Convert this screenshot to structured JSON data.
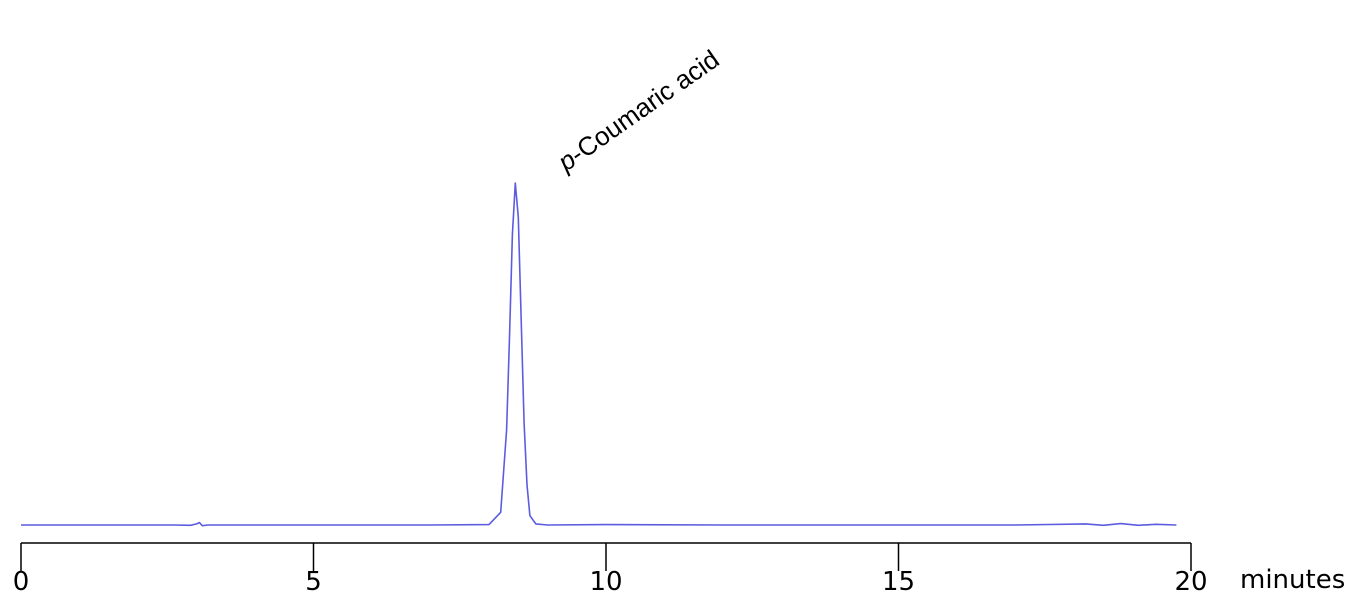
{
  "chart_data": {
    "type": "line",
    "title": "",
    "xlabel": "minutes",
    "ylabel": "",
    "xlim": [
      0,
      20
    ],
    "x_ticks": [
      0,
      5,
      10,
      15,
      20
    ],
    "x_tick_labels": [
      "0",
      "5",
      "10",
      "15",
      "20"
    ],
    "grid": false,
    "line_color": "#5c5ce0",
    "series": [
      {
        "x": [
          0.0,
          2.6,
          2.9,
          3.0,
          3.05,
          3.1,
          3.2,
          3.4,
          5.0,
          7.0,
          8.0,
          8.2,
          8.3,
          8.35,
          8.4,
          8.45,
          8.5,
          8.55,
          8.6,
          8.65,
          8.7,
          8.8,
          9.0,
          10.0,
          12.0,
          15.0,
          17.0,
          18.2,
          18.5,
          18.8,
          19.1,
          19.4,
          19.75
        ],
        "y": [
          0.003,
          0.003,
          0.002,
          0.006,
          0.01,
          0.001,
          0.003,
          0.003,
          0.003,
          0.003,
          0.004,
          0.04,
          0.28,
          0.55,
          0.85,
          1.0,
          0.9,
          0.6,
          0.3,
          0.12,
          0.03,
          0.006,
          0.003,
          0.004,
          0.003,
          0.003,
          0.003,
          0.006,
          0.002,
          0.007,
          0.002,
          0.005,
          0.003
        ]
      }
    ],
    "annotations": [
      {
        "text": "p-Coumaric acid",
        "italic_prefix": "p",
        "rest": "-Coumaric acid",
        "x": 8.5
      }
    ]
  }
}
